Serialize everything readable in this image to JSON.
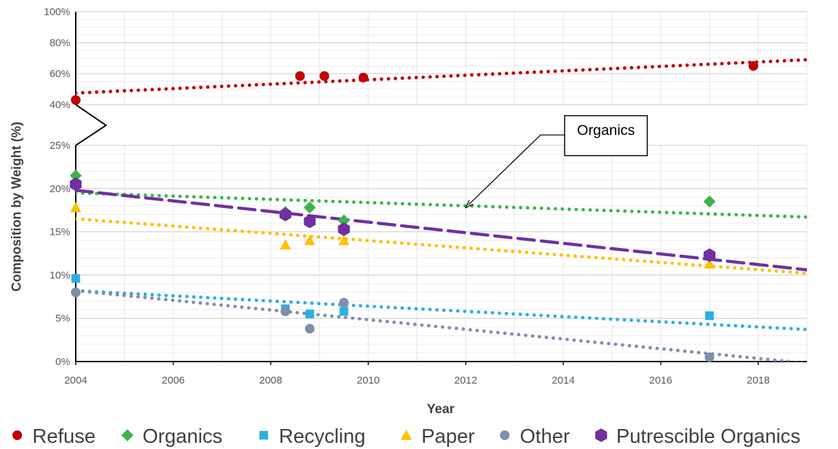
{
  "chart_data": {
    "type": "scatter",
    "title": "",
    "xlabel": "Year",
    "ylabel": "Composition by Weight  (%)",
    "x_ticks": [
      "2004",
      "2006",
      "2008",
      "2010",
      "2012",
      "2014",
      "2016",
      "2018"
    ],
    "xlim": [
      2004,
      2019
    ],
    "upper_panel": {
      "ylim": [
        40,
        100
      ],
      "y_ticks": [
        "40%",
        "60%",
        "80%",
        "100%"
      ]
    },
    "lower_panel": {
      "ylim": [
        0,
        25
      ],
      "y_ticks": [
        "0%",
        "5%",
        "10%",
        "15%",
        "20%",
        "25%"
      ]
    },
    "axis_break": true,
    "grid": true,
    "legend_position": "bottom",
    "series": [
      {
        "name": "Refuse",
        "marker": "circle",
        "color": "#c00000",
        "panel": "upper",
        "points": [
          [
            2004.0,
            43
          ],
          [
            2008.6,
            58.5
          ],
          [
            2009.1,
            58.5
          ],
          [
            2009.9,
            57.5
          ],
          [
            2017.9,
            65
          ]
        ],
        "trend": {
          "style": "dotted",
          "from": [
            2004,
            47.5
          ],
          "to": [
            2019,
            69
          ]
        }
      },
      {
        "name": "Organics",
        "marker": "diamond",
        "color": "#3cb44b",
        "panel": "lower",
        "points": [
          [
            2004.0,
            21.5
          ],
          [
            2008.3,
            17.3
          ],
          [
            2008.8,
            17.8
          ],
          [
            2009.5,
            16.3
          ],
          [
            2017.0,
            18.5
          ]
        ],
        "trend": {
          "style": "dotted",
          "from": [
            2004,
            19.5
          ],
          "to": [
            2019,
            16.7
          ]
        }
      },
      {
        "name": "Recycling",
        "marker": "square",
        "color": "#2eafe0",
        "panel": "lower",
        "points": [
          [
            2004.0,
            9.6
          ],
          [
            2008.3,
            6.1
          ],
          [
            2008.8,
            5.5
          ],
          [
            2009.5,
            5.8
          ],
          [
            2017.0,
            5.3
          ]
        ],
        "trend": {
          "style": "dotted",
          "from": [
            2004,
            8.2
          ],
          "to": [
            2019,
            3.7
          ]
        }
      },
      {
        "name": "Paper",
        "marker": "triangle",
        "color": "#ffc000",
        "panel": "lower",
        "points": [
          [
            2004.0,
            17.8
          ],
          [
            2008.3,
            13.5
          ],
          [
            2008.8,
            14.0
          ],
          [
            2009.5,
            14.0
          ],
          [
            2017.0,
            11.3
          ]
        ],
        "trend": {
          "style": "dotted",
          "from": [
            2004,
            16.5
          ],
          "to": [
            2019,
            10.2
          ]
        }
      },
      {
        "name": "Other",
        "marker": "circle",
        "color": "#7f8faa",
        "panel": "lower",
        "points": [
          [
            2004.0,
            8.0
          ],
          [
            2008.3,
            5.8
          ],
          [
            2008.8,
            3.8
          ],
          [
            2009.5,
            6.8
          ],
          [
            2017.0,
            0.5
          ]
        ],
        "trend": {
          "style": "dotted",
          "from": [
            2004,
            8.2
          ],
          "to": [
            2019,
            -0.2
          ]
        }
      },
      {
        "name": "Putrescible Organics",
        "marker": "hexagon",
        "color": "#7030a0",
        "panel": "lower",
        "points": [
          [
            2004.0,
            20.5
          ],
          [
            2008.3,
            17.0
          ],
          [
            2008.8,
            16.2
          ],
          [
            2009.5,
            15.3
          ],
          [
            2017.0,
            12.3
          ]
        ],
        "trend": {
          "style": "dashed",
          "from": [
            2004,
            19.8
          ],
          "to": [
            2019,
            10.6
          ]
        }
      }
    ],
    "annotations": [
      {
        "text": "Organics",
        "arrow_to": [
          2012,
          17.8
        ]
      }
    ]
  }
}
